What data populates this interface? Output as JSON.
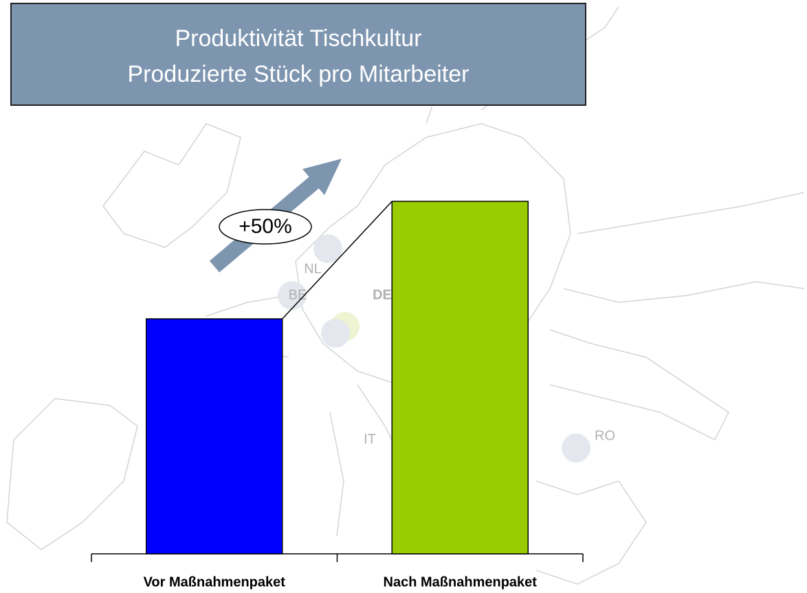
{
  "chart_data": {
    "type": "bar",
    "title": "Produktivität Tischkultur",
    "subtitle": "Produzierte Stück pro Mitarbeiter",
    "categories": [
      "Vor Maßnahmenpaket",
      "Nach Maßnahmenpaket"
    ],
    "values": [
      100,
      150
    ],
    "colors": [
      "#0000ff",
      "#99cc00"
    ],
    "ylim": [
      0,
      150
    ],
    "annotation": "+50%",
    "map_labels": [
      "NL",
      "BE",
      "DE",
      "IT",
      "RO"
    ]
  }
}
